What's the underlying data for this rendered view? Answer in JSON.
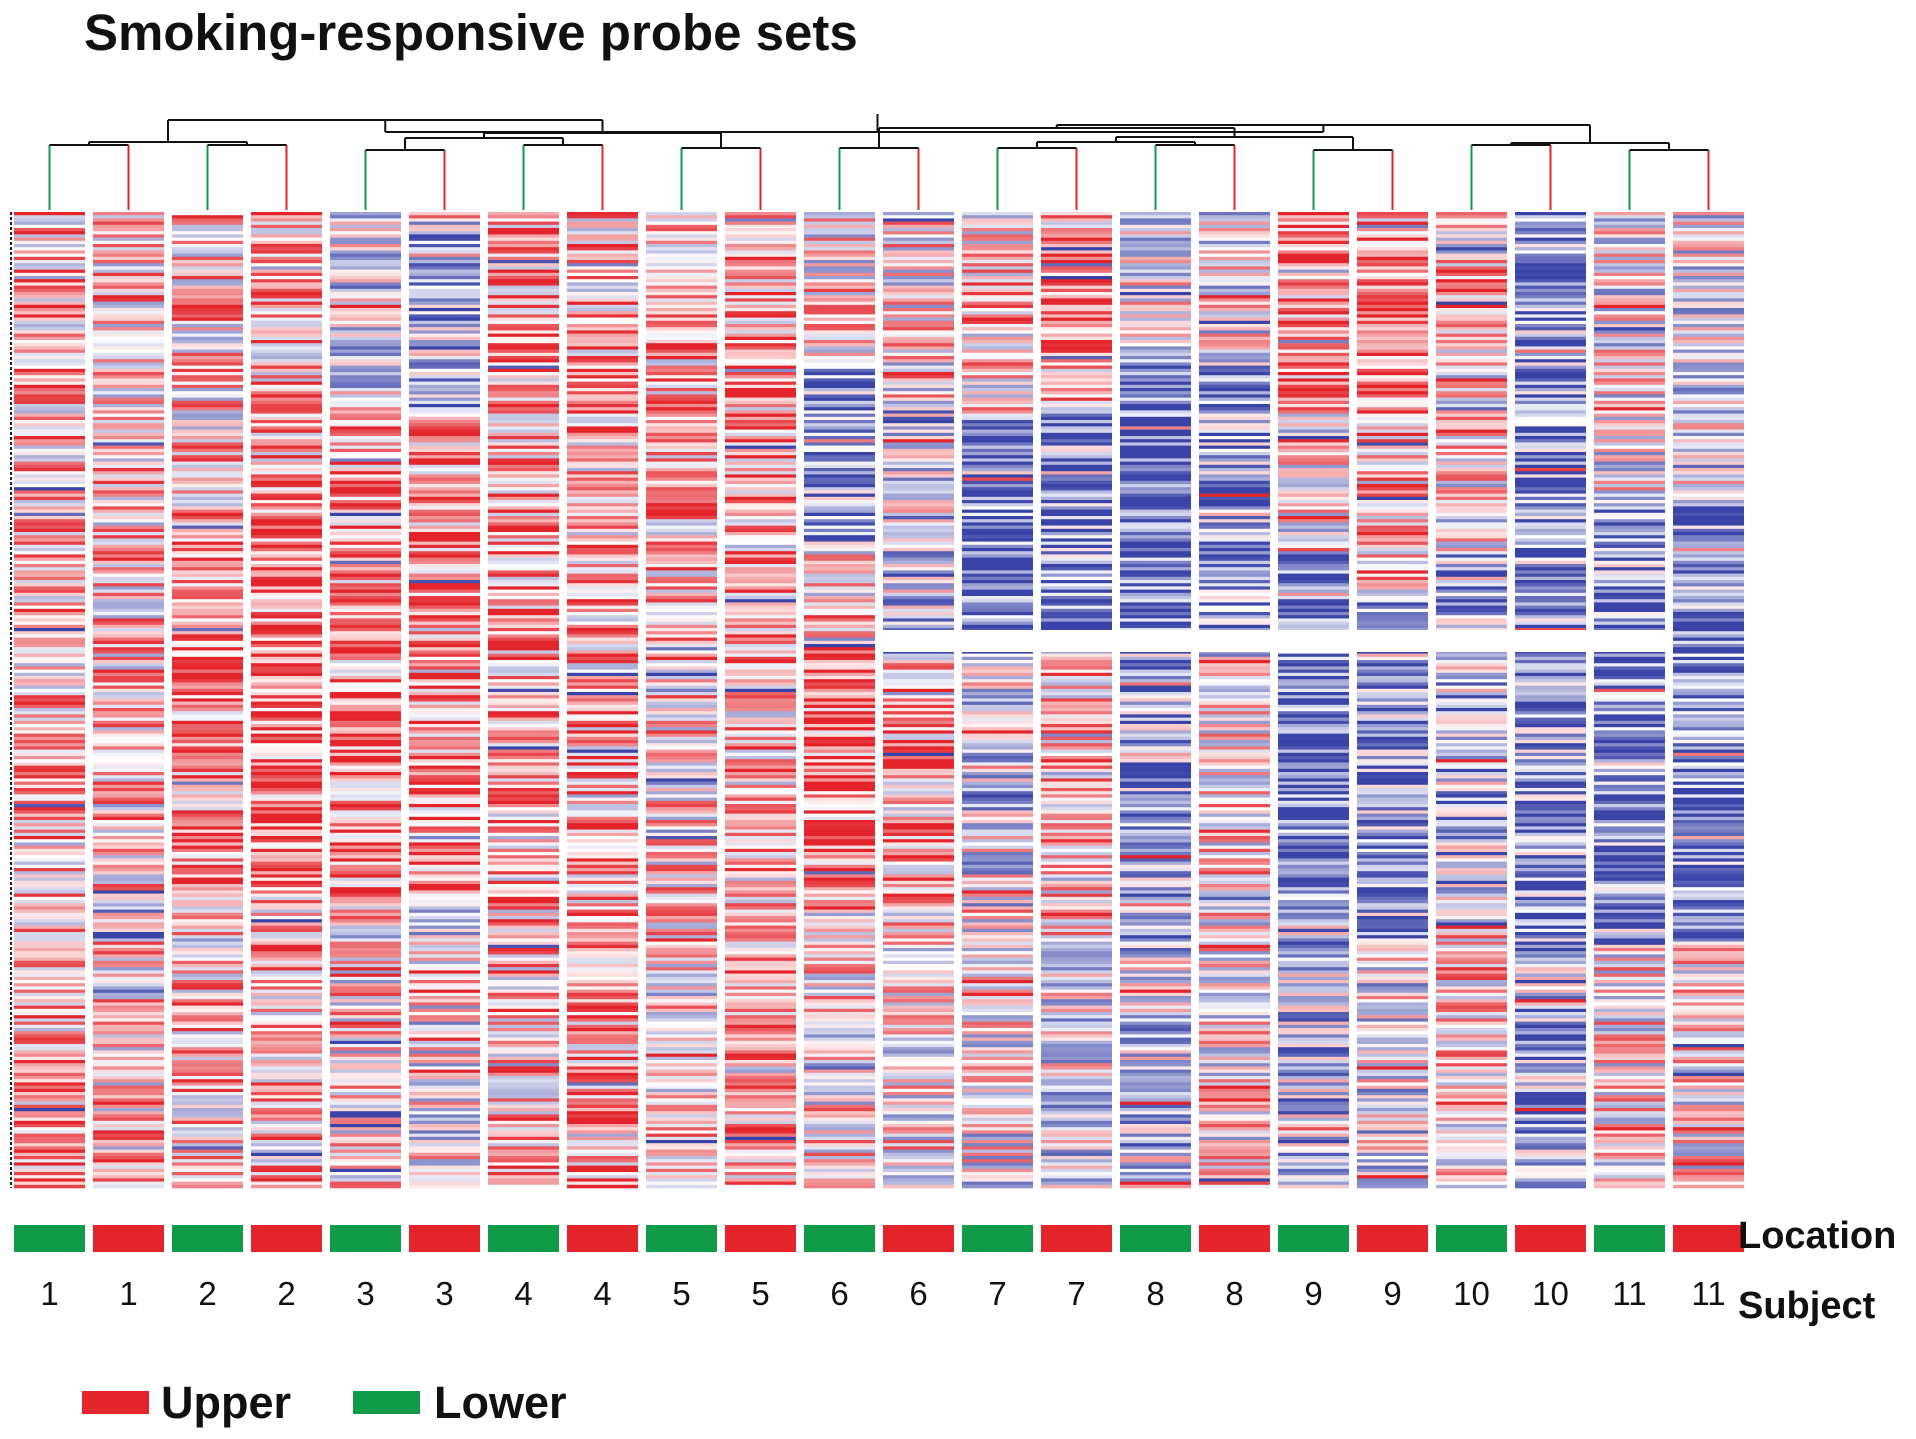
{
  "chart_data": {
    "type": "heatmap",
    "title": "Smoking-responsive probe sets",
    "columns": [
      {
        "subject": "1",
        "location": "Lower"
      },
      {
        "subject": "1",
        "location": "Upper"
      },
      {
        "subject": "2",
        "location": "Lower"
      },
      {
        "subject": "2",
        "location": "Upper"
      },
      {
        "subject": "3",
        "location": "Lower"
      },
      {
        "subject": "3",
        "location": "Upper"
      },
      {
        "subject": "4",
        "location": "Lower"
      },
      {
        "subject": "4",
        "location": "Upper"
      },
      {
        "subject": "5",
        "location": "Lower"
      },
      {
        "subject": "5",
        "location": "Upper"
      },
      {
        "subject": "6",
        "location": "Lower"
      },
      {
        "subject": "6",
        "location": "Upper"
      },
      {
        "subject": "7",
        "location": "Lower"
      },
      {
        "subject": "7",
        "location": "Upper"
      },
      {
        "subject": "8",
        "location": "Lower"
      },
      {
        "subject": "8",
        "location": "Upper"
      },
      {
        "subject": "9",
        "location": "Lower"
      },
      {
        "subject": "9",
        "location": "Upper"
      },
      {
        "subject": "10",
        "location": "Lower"
      },
      {
        "subject": "10",
        "location": "Upper"
      },
      {
        "subject": "11",
        "location": "Lower"
      },
      {
        "subject": "11",
        "location": "Upper"
      }
    ],
    "annotation_row_labels": {
      "location": "Location",
      "subject": "Subject"
    },
    "legend": [
      {
        "label": "Upper",
        "color": "#e3242b"
      },
      {
        "label": "Lower",
        "color": "#0f9b48"
      }
    ],
    "color_scale": {
      "high": "#e3242b",
      "mid": "#ffffff",
      "low": "#3a44a8"
    },
    "dendrogram": "paired by subject: each subject's Lower (green) and Upper (red) samples join first"
  }
}
